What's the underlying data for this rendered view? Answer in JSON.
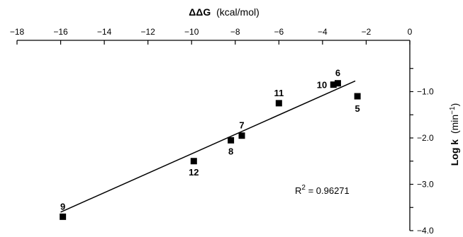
{
  "chart_data": {
    "type": "scatter",
    "title": "",
    "xlabel": {
      "main": "ΔΔG",
      "unit": "(kcal/mol)"
    },
    "ylabel": {
      "main": "Log k",
      "unit_prefix": "(min",
      "unit_sup": "−1",
      "unit_suffix": ")"
    },
    "xlim": [
      -18,
      0
    ],
    "ylim": [
      -4.0,
      0
    ],
    "x_axis_position": "top",
    "y_axis_position": "right",
    "grid": false,
    "legend": "none",
    "x_ticks": [
      -18,
      -16,
      -14,
      -12,
      -10,
      -8,
      -6,
      -4,
      -2,
      0
    ],
    "x_tick_labels": [
      "−18",
      "−16",
      "−14",
      "−12",
      "−10",
      "−8",
      "−6",
      "−4",
      "−2",
      "0"
    ],
    "y_ticks": [
      -1.0,
      -2.0,
      -3.0,
      -4.0
    ],
    "y_tick_labels": [
      "−1.0",
      "−2.0",
      "−3.0",
      "−4.0"
    ],
    "points": [
      {
        "label": "9",
        "x": -15.9,
        "y": -3.7
      },
      {
        "label": "12",
        "x": -9.9,
        "y": -2.5
      },
      {
        "label": "8",
        "x": -8.2,
        "y": -2.05
      },
      {
        "label": "7",
        "x": -7.7,
        "y": -1.95
      },
      {
        "label": "11",
        "x": -6.0,
        "y": -1.25
      },
      {
        "label": "10",
        "x": -3.5,
        "y": -0.85
      },
      {
        "label": "6",
        "x": -3.3,
        "y": -0.82
      },
      {
        "label": "5",
        "x": -2.4,
        "y": -1.1
      }
    ],
    "fit_line": {
      "x1": -16.0,
      "y1": -3.6,
      "x2": -2.5,
      "y2": -0.77
    },
    "annotation": {
      "prefix": "R",
      "sup": "2",
      "suffix": " = 0.96271"
    },
    "marker_color": "#000000"
  }
}
